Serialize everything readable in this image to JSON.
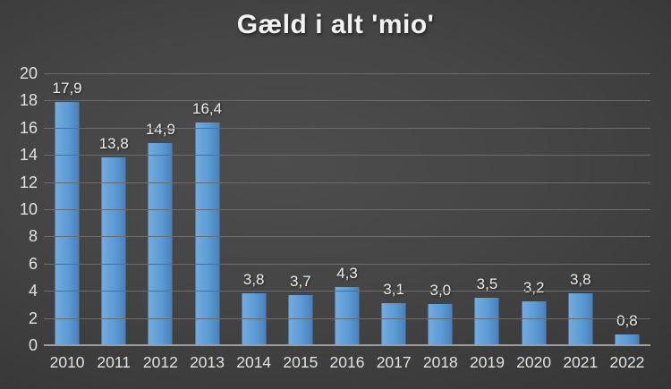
{
  "chart_data": {
    "type": "bar",
    "title": "Gæld i alt 'mio'",
    "categories": [
      "2010",
      "2011",
      "2012",
      "2013",
      "2014",
      "2015",
      "2016",
      "2017",
      "2018",
      "2019",
      "2020",
      "2021",
      "2022"
    ],
    "values": [
      17.9,
      13.8,
      14.9,
      16.4,
      3.8,
      3.7,
      4.3,
      3.1,
      3.0,
      3.5,
      3.2,
      3.8,
      0.8
    ],
    "value_labels": [
      "17,9",
      "13,8",
      "14,9",
      "16,4",
      "3,8",
      "3,7",
      "4,3",
      "3,1",
      "3,0",
      "3,5",
      "3,2",
      "3,8",
      "0,8"
    ],
    "xlabel": "",
    "ylabel": "",
    "y_axis": {
      "min": 0,
      "max": 20,
      "step": 2,
      "tick_labels": [
        "0",
        "2",
        "4",
        "6",
        "8",
        "10",
        "12",
        "14",
        "16",
        "18",
        "20"
      ]
    },
    "grid": true,
    "legend": "none",
    "decimal_separator": ",",
    "colors": {
      "bar_light": "#74abdf",
      "bar_mid": "#5b9bd5",
      "bar_dark": "#4a80bb",
      "gridline": "#6b6b6b",
      "axis_line": "#9d9d9d",
      "tick_text": "#e2e2e2",
      "data_label_text": "#ececec",
      "title_text": "#f2f2f2",
      "background_center": "#4d4d4d",
      "background_edge": "#262626"
    }
  }
}
